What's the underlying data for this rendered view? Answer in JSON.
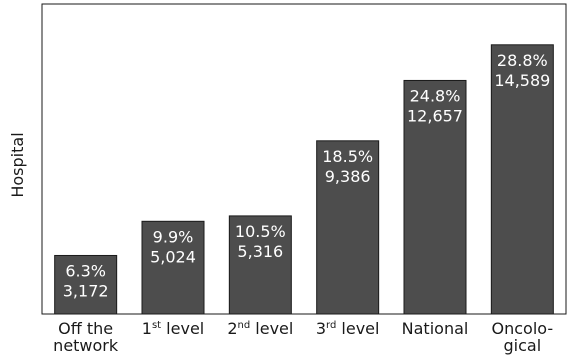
{
  "chart_data": {
    "type": "bar",
    "ylabel": "Hospital",
    "xlabel": "",
    "title": "",
    "ylim": [
      0,
      100
    ],
    "grid": false,
    "categories": [
      {
        "lines": [
          {
            "t": "Off the"
          },
          {
            "t": "network"
          }
        ]
      },
      {
        "lines": [
          {
            "t": "1",
            "sup": "st",
            "rest": " level"
          }
        ]
      },
      {
        "lines": [
          {
            "t": "2",
            "sup": "nd",
            "rest": " level"
          }
        ]
      },
      {
        "lines": [
          {
            "t": "3",
            "sup": "rd",
            "rest": " level"
          }
        ]
      },
      {
        "lines": [
          {
            "t": "National"
          }
        ]
      },
      {
        "lines": [
          {
            "t": "Oncolo-"
          },
          {
            "t": "gical"
          }
        ]
      }
    ],
    "percent_labels": [
      "6.3%",
      "9.9%",
      "10.5%",
      "18.5%",
      "24.8%",
      "28.8%"
    ],
    "count_labels": [
      "3,172",
      "5,024",
      "5,316",
      "9,386",
      "12,657",
      "14,589"
    ],
    "values": [
      3172,
      5024,
      5316,
      9386,
      12657,
      14589
    ],
    "ymax": 16800,
    "colors": {
      "bar": "#4d4d4d",
      "bar_stroke": "#1a1a1a",
      "axis": "#1a1a1a",
      "label": "#ffffff"
    }
  }
}
